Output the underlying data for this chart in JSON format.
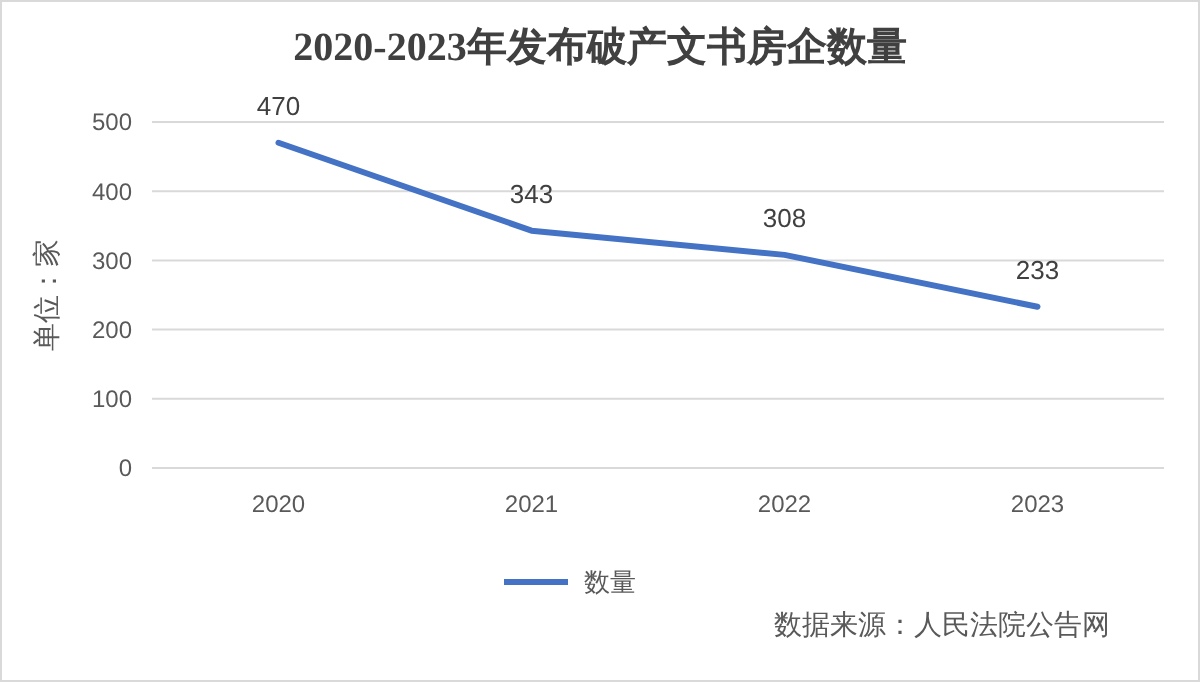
{
  "chart_data": {
    "type": "line",
    "title": "2020-2023年发布破产文书房企数量",
    "ylabel": "单位：家",
    "categories": [
      "2020",
      "2021",
      "2022",
      "2023"
    ],
    "series": [
      {
        "name": "数量",
        "color": "#4472c4",
        "values": [
          470,
          343,
          308,
          233
        ]
      }
    ],
    "ylim": [
      0,
      500
    ],
    "yticks": [
      0,
      100,
      200,
      300,
      400,
      500
    ],
    "grid": "y",
    "legend": "bottom",
    "data_labels": true,
    "marker": "none",
    "line_style": "solid",
    "annotations": [
      "数据来源：人民法院公告网"
    ]
  }
}
